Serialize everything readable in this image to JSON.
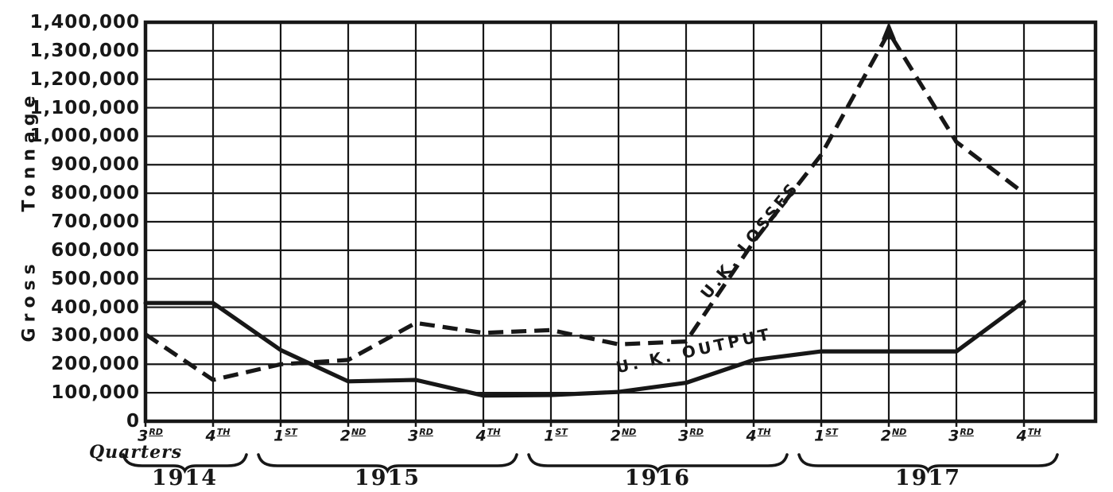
{
  "chart_data": {
    "type": "line",
    "ylabel": "Gross Tonnage",
    "quarters_label": "Quarters",
    "ylim": [
      0,
      1400000
    ],
    "y_tick_step": 100000,
    "grid": true,
    "ink_color": "#171717",
    "background": "#ffffff",
    "y_tick_labels": [
      "0",
      "100,000",
      "200,000",
      "300,000",
      "400,000",
      "500,000",
      "600,000",
      "700,000",
      "800,000",
      "900,000",
      "1,000,000",
      "1,100,000",
      "1,200,000",
      "1,300,000",
      "1,400,000"
    ],
    "x_tick_labels": [
      {
        "num": "3",
        "suf": "RD"
      },
      {
        "num": "4",
        "suf": "TH"
      },
      {
        "num": "1",
        "suf": "ST"
      },
      {
        "num": "2",
        "suf": "ND"
      },
      {
        "num": "3",
        "suf": "RD"
      },
      {
        "num": "4",
        "suf": "TH"
      },
      {
        "num": "1",
        "suf": "ST"
      },
      {
        "num": "2",
        "suf": "ND"
      },
      {
        "num": "3",
        "suf": "RD"
      },
      {
        "num": "4",
        "suf": "TH"
      },
      {
        "num": "1",
        "suf": "ST"
      },
      {
        "num": "2",
        "suf": "ND"
      },
      {
        "num": "3",
        "suf": "RD"
      },
      {
        "num": "4",
        "suf": "TH"
      }
    ],
    "years": [
      {
        "label": "1914",
        "from_quarter_index": 0,
        "to_quarter_index": 1
      },
      {
        "label": "1915",
        "from_quarter_index": 2,
        "to_quarter_index": 5
      },
      {
        "label": "1916",
        "from_quarter_index": 6,
        "to_quarter_index": 9
      },
      {
        "label": "1917",
        "from_quarter_index": 10,
        "to_quarter_index": 13
      }
    ],
    "series": [
      {
        "name": "U.K. LOSSES",
        "line_style": "dashed",
        "peak_marker": "up-arrowhead",
        "values": [
          305000,
          145000,
          200000,
          215000,
          345000,
          310000,
          320000,
          270000,
          280000,
          630000,
          935000,
          1365000,
          980000,
          800000
        ]
      },
      {
        "name": "U. K. OUTPUT",
        "line_style": "solid",
        "peak_marker": null,
        "values": [
          415000,
          415000,
          250000,
          140000,
          145000,
          90000,
          92000,
          103000,
          135000,
          215000,
          245000,
          245000,
          245000,
          420000
        ]
      }
    ]
  }
}
